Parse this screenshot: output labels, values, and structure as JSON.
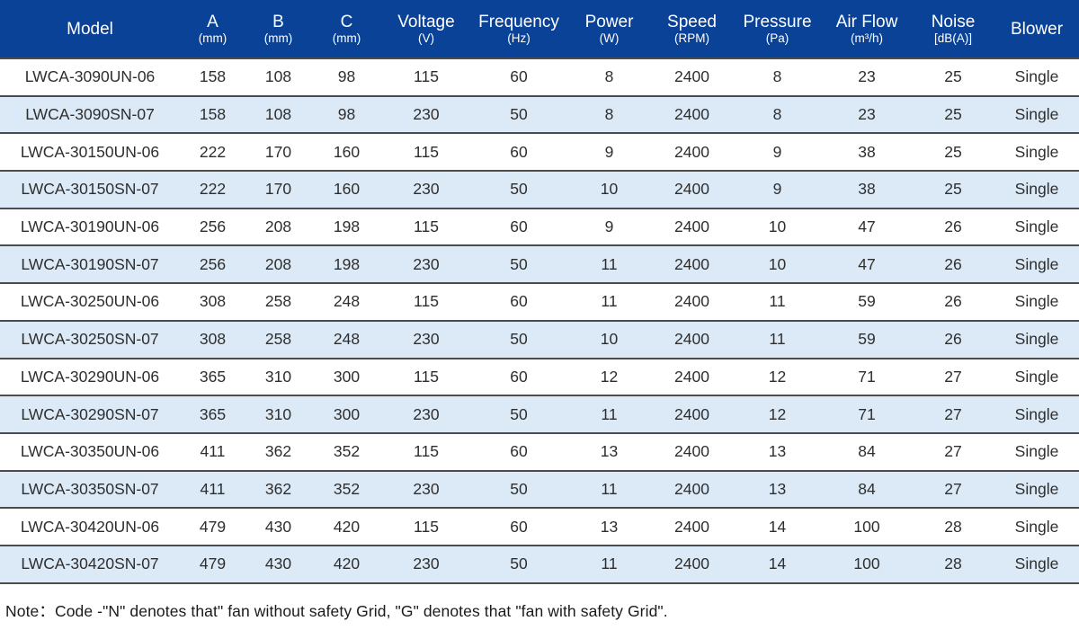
{
  "theme": {
    "header_bg": "#0a4298",
    "header_text": "#ffffff",
    "row_bg": "#ffffff",
    "row_alt_bg": "#dce9f6",
    "divider": "#4c4c4c",
    "body_text": "#2e2e2e"
  },
  "table": {
    "columns": [
      {
        "label": "Model",
        "unit": ""
      },
      {
        "label": "A",
        "unit": "(mm)"
      },
      {
        "label": "B",
        "unit": "(mm)"
      },
      {
        "label": "C",
        "unit": "(mm)"
      },
      {
        "label": "Voltage",
        "unit": "(V)"
      },
      {
        "label": "Frequency",
        "unit": "(Hz)"
      },
      {
        "label": "Power",
        "unit": "(W)"
      },
      {
        "label": "Speed",
        "unit": "(RPM)"
      },
      {
        "label": "Pressure",
        "unit": "(Pa)"
      },
      {
        "label": "Air Flow",
        "unit": "(m³/h)"
      },
      {
        "label": "Noise",
        "unit": "[dB(A)]"
      },
      {
        "label": "Blower",
        "unit": ""
      }
    ],
    "rows": [
      [
        "LWCA-3090UN-06",
        "158",
        "108",
        "98",
        "115",
        "60",
        "8",
        "2400",
        "8",
        "23",
        "25",
        "Single"
      ],
      [
        "LWCA-3090SN-07",
        "158",
        "108",
        "98",
        "230",
        "50",
        "8",
        "2400",
        "8",
        "23",
        "25",
        "Single"
      ],
      [
        "LWCA-30150UN-06",
        "222",
        "170",
        "160",
        "115",
        "60",
        "9",
        "2400",
        "9",
        "38",
        "25",
        "Single"
      ],
      [
        "LWCA-30150SN-07",
        "222",
        "170",
        "160",
        "230",
        "50",
        "10",
        "2400",
        "9",
        "38",
        "25",
        "Single"
      ],
      [
        "LWCA-30190UN-06",
        "256",
        "208",
        "198",
        "115",
        "60",
        "9",
        "2400",
        "10",
        "47",
        "26",
        "Single"
      ],
      [
        "LWCA-30190SN-07",
        "256",
        "208",
        "198",
        "230",
        "50",
        "11",
        "2400",
        "10",
        "47",
        "26",
        "Single"
      ],
      [
        "LWCA-30250UN-06",
        "308",
        "258",
        "248",
        "115",
        "60",
        "11",
        "2400",
        "11",
        "59",
        "26",
        "Single"
      ],
      [
        "LWCA-30250SN-07",
        "308",
        "258",
        "248",
        "230",
        "50",
        "10",
        "2400",
        "11",
        "59",
        "26",
        "Single"
      ],
      [
        "LWCA-30290UN-06",
        "365",
        "310",
        "300",
        "115",
        "60",
        "12",
        "2400",
        "12",
        "71",
        "27",
        "Single"
      ],
      [
        "LWCA-30290SN-07",
        "365",
        "310",
        "300",
        "230",
        "50",
        "11",
        "2400",
        "12",
        "71",
        "27",
        "Single"
      ],
      [
        "LWCA-30350UN-06",
        "411",
        "362",
        "352",
        "115",
        "60",
        "13",
        "2400",
        "13",
        "84",
        "27",
        "Single"
      ],
      [
        "LWCA-30350SN-07",
        "411",
        "362",
        "352",
        "230",
        "50",
        "11",
        "2400",
        "13",
        "84",
        "27",
        "Single"
      ],
      [
        "LWCA-30420UN-06",
        "479",
        "430",
        "420",
        "115",
        "60",
        "13",
        "2400",
        "14",
        "100",
        "28",
        "Single"
      ],
      [
        "LWCA-30420SN-07",
        "479",
        "430",
        "420",
        "230",
        "50",
        "11",
        "2400",
        "14",
        "100",
        "28",
        "Single"
      ]
    ]
  },
  "note": "Note：Code -\"N\" denotes that\" fan without safety Grid, \"G\" denotes that \"fan with safety Grid\"."
}
